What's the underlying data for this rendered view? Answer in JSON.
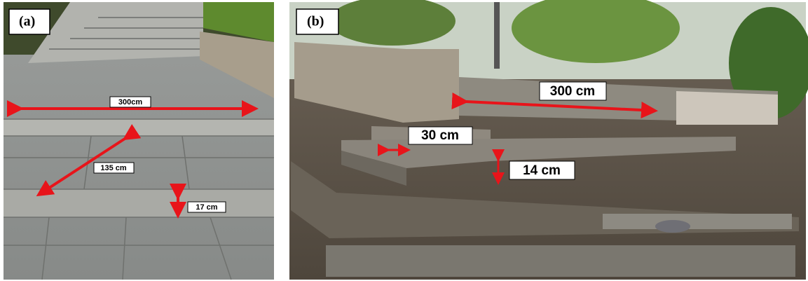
{
  "panels": [
    {
      "label": "(a)",
      "annotations": [
        "300cm",
        "135 cm",
        "17 cm"
      ]
    },
    {
      "label": "(b)",
      "annotations": [
        "300 cm",
        "30 cm",
        "14 cm"
      ]
    }
  ]
}
